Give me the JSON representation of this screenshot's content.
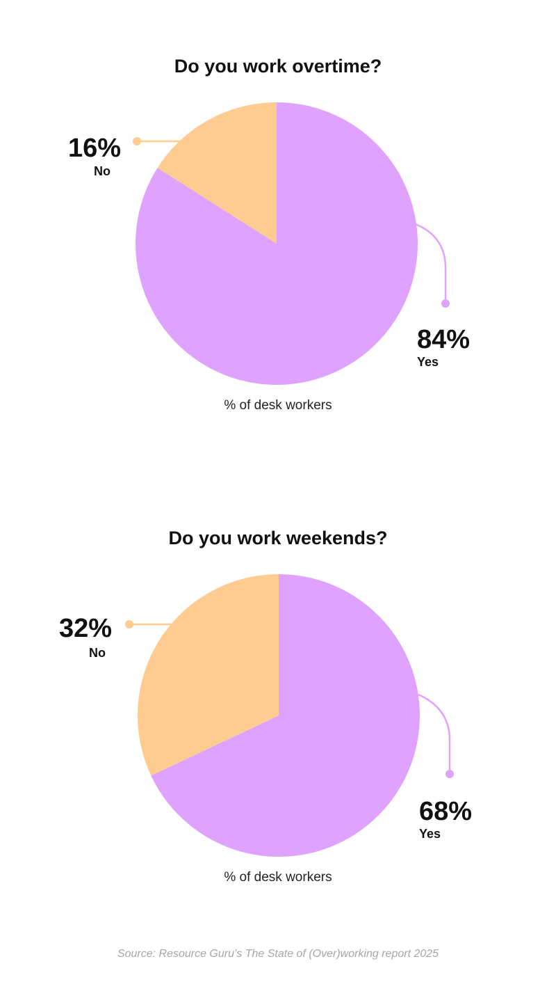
{
  "colors": {
    "yes": "#dfa2fe",
    "no": "#fecc90"
  },
  "chart_data": [
    {
      "type": "pie",
      "title": "Do you work overtime?",
      "subtitle": "% of desk workers",
      "slices": [
        {
          "label": "Yes",
          "value": 84,
          "display": "84%"
        },
        {
          "label": "No",
          "value": 16,
          "display": "16%"
        }
      ]
    },
    {
      "type": "pie",
      "title": "Do you work weekends?",
      "subtitle": "% of desk workers",
      "slices": [
        {
          "label": "Yes",
          "value": 68,
          "display": "68%"
        },
        {
          "label": "No",
          "value": 32,
          "display": "32%"
        }
      ]
    }
  ],
  "source": "Source: Resource Guru’s The State of (Over)working report 2025"
}
